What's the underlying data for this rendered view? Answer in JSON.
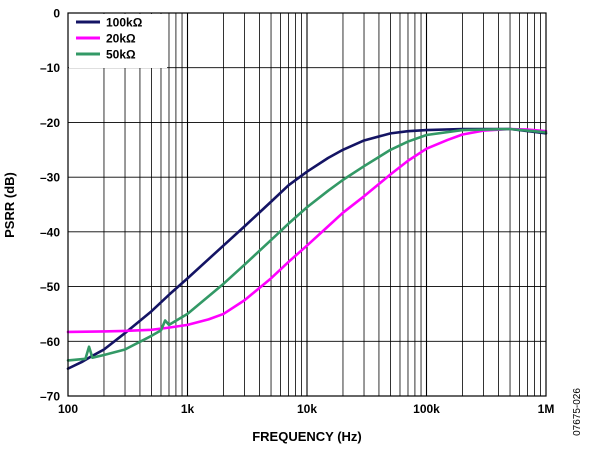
{
  "chart_data": {
    "type": "line",
    "title": "",
    "xlabel": "FREQUENCY (Hz)",
    "ylabel": "PSRR (dB)",
    "x_scale": "log",
    "xlim": [
      100,
      1000000
    ],
    "ylim": [
      -70,
      0
    ],
    "grid": true,
    "legend_position": "top-left",
    "x_ticks": [
      {
        "value": 100,
        "label": "100"
      },
      {
        "value": 1000,
        "label": "1k"
      },
      {
        "value": 10000,
        "label": "10k"
      },
      {
        "value": 100000,
        "label": "100k"
      },
      {
        "value": 1000000,
        "label": "1M"
      }
    ],
    "y_ticks": [
      {
        "value": 0,
        "label": "0"
      },
      {
        "value": -10,
        "label": "–10"
      },
      {
        "value": -20,
        "label": "–20"
      },
      {
        "value": -30,
        "label": "–30"
      },
      {
        "value": -40,
        "label": "–40"
      },
      {
        "value": -50,
        "label": "–50"
      },
      {
        "value": -60,
        "label": "–60"
      },
      {
        "value": -70,
        "label": "–70"
      }
    ],
    "series": [
      {
        "name": "100kΩ",
        "color": "#141464",
        "points": [
          [
            100,
            -65
          ],
          [
            130,
            -63.8
          ],
          [
            150,
            -63
          ],
          [
            200,
            -61.5
          ],
          [
            300,
            -58.5
          ],
          [
            500,
            -54.5
          ],
          [
            700,
            -51.5
          ],
          [
            1000,
            -48.5
          ],
          [
            2000,
            -42.5
          ],
          [
            3000,
            -39
          ],
          [
            5000,
            -34.5
          ],
          [
            7000,
            -31.5
          ],
          [
            10000,
            -29
          ],
          [
            15000,
            -26.5
          ],
          [
            20000,
            -25
          ],
          [
            30000,
            -23.3
          ],
          [
            50000,
            -22
          ],
          [
            70000,
            -21.6
          ],
          [
            100000,
            -21.4
          ],
          [
            200000,
            -21.2
          ],
          [
            500000,
            -21.2
          ],
          [
            1000000,
            -22
          ]
        ]
      },
      {
        "name": "20kΩ",
        "color": "#ff00ff",
        "points": [
          [
            100,
            -58.3
          ],
          [
            200,
            -58.2
          ],
          [
            300,
            -58.1
          ],
          [
            500,
            -57.9
          ],
          [
            700,
            -57.5
          ],
          [
            1000,
            -57
          ],
          [
            1500,
            -56
          ],
          [
            2000,
            -55
          ],
          [
            3000,
            -52.5
          ],
          [
            5000,
            -48.5
          ],
          [
            7000,
            -45.5
          ],
          [
            10000,
            -42.5
          ],
          [
            15000,
            -39
          ],
          [
            20000,
            -36.5
          ],
          [
            30000,
            -33.5
          ],
          [
            50000,
            -29.5
          ],
          [
            70000,
            -27
          ],
          [
            100000,
            -24.8
          ],
          [
            150000,
            -23.2
          ],
          [
            200000,
            -22.2
          ],
          [
            300000,
            -21.5
          ],
          [
            500000,
            -21.2
          ],
          [
            700000,
            -21.3
          ],
          [
            1000000,
            -21.6
          ]
        ]
      },
      {
        "name": "50kΩ",
        "color": "#339966",
        "points": [
          [
            100,
            -63.5
          ],
          [
            140,
            -63.2
          ],
          [
            150,
            -61
          ],
          [
            160,
            -63
          ],
          [
            200,
            -62.5
          ],
          [
            300,
            -61.5
          ],
          [
            500,
            -59
          ],
          [
            600,
            -58
          ],
          [
            650,
            -56.2
          ],
          [
            700,
            -57
          ],
          [
            1000,
            -55
          ],
          [
            2000,
            -49.5
          ],
          [
            3000,
            -46
          ],
          [
            5000,
            -41.5
          ],
          [
            7000,
            -38.5
          ],
          [
            10000,
            -35.5
          ],
          [
            15000,
            -32.5
          ],
          [
            20000,
            -30.5
          ],
          [
            30000,
            -28
          ],
          [
            50000,
            -25
          ],
          [
            70000,
            -23.5
          ],
          [
            100000,
            -22.3
          ],
          [
            200000,
            -21.4
          ],
          [
            500000,
            -21.2
          ],
          [
            1000000,
            -21.8
          ]
        ]
      }
    ],
    "figure_code": "07675-026"
  }
}
